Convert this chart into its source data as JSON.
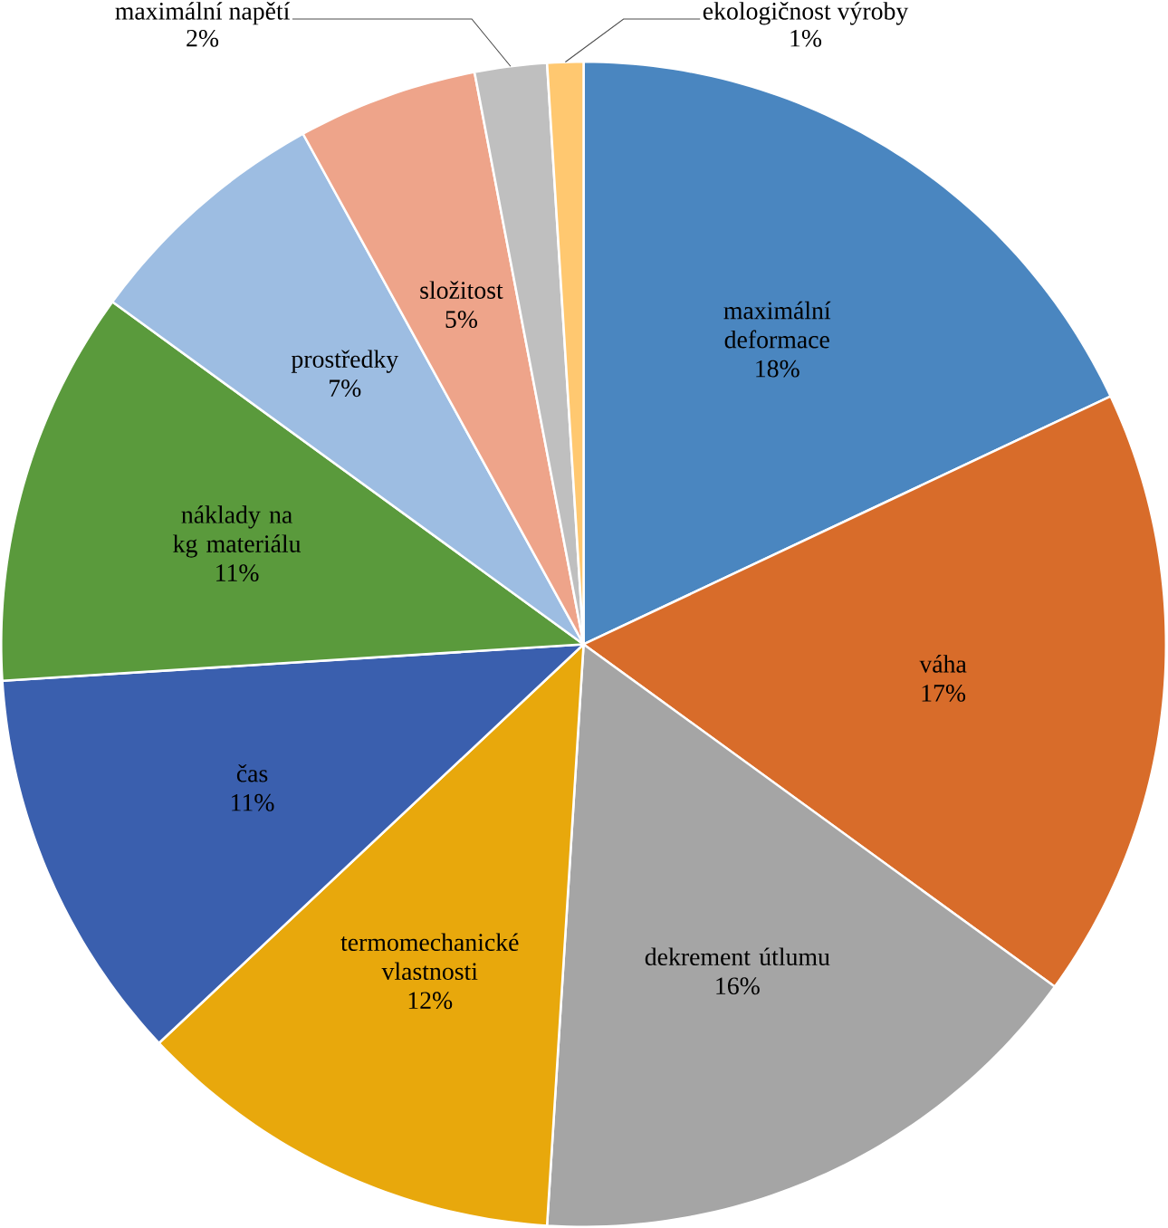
{
  "chart_data": {
    "type": "pie",
    "categories": [
      "maximální deformace",
      "váha",
      "dekrement útlumu",
      "termomechanické vlastnosti",
      "čas",
      "náklady na kg materiálu",
      "prostředky",
      "složitost",
      "maximální napětí",
      "ekologičnost výroby"
    ],
    "values": [
      18,
      17,
      16,
      12,
      11,
      11,
      7,
      5,
      2,
      1
    ],
    "value_labels": [
      "18%",
      "17%",
      "16%",
      "12%",
      "11%",
      "11%",
      "7%",
      "5%",
      "2%",
      "1%"
    ],
    "colors": [
      "#4a86c0",
      "#d86c2a",
      "#a5a5a5",
      "#e8a80c",
      "#3a5fae",
      "#5a9a3c",
      "#9dbde2",
      "#eea48a",
      "#bfbfbf",
      "#ffc870"
    ]
  }
}
